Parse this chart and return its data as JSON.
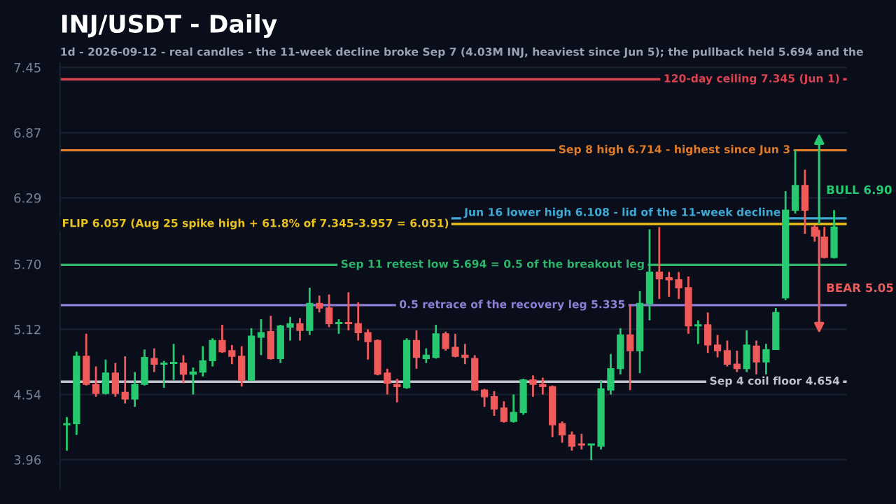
{
  "chart_data": {
    "type": "candlestick",
    "title": "INJ/USDT - Daily",
    "subtitle": "1d - 2026-09-12 - real candles - the 11-week decline broke Sep 7 (4.03M INJ, heaviest since Jun 5); the pullback held 5.694 and the",
    "categories": [
      null,
      null,
      null,
      null,
      null,
      null,
      null,
      null,
      null,
      null,
      null,
      null,
      null,
      null,
      null,
      null,
      null,
      null,
      null,
      null,
      null,
      null,
      null,
      null,
      null,
      null,
      null,
      null,
      null,
      null,
      null,
      null,
      null,
      null,
      null,
      null,
      null,
      null,
      null,
      null,
      null,
      null,
      null,
      null,
      null,
      null,
      null,
      null,
      null,
      null,
      null,
      null,
      null,
      null,
      null,
      null,
      null,
      null,
      null,
      null,
      null,
      null,
      null,
      null,
      null,
      null,
      null,
      null,
      null,
      null,
      null,
      null,
      null,
      null,
      null,
      null,
      null,
      null,
      null,
      null
    ],
    "ohlc": [
      [
        4.27,
        4.34,
        4.04,
        4.28
      ],
      [
        4.28,
        4.92,
        4.18,
        4.88
      ],
      [
        4.88,
        5.08,
        4.62,
        4.63
      ],
      [
        4.63,
        4.79,
        4.52,
        4.55
      ],
      [
        4.55,
        4.85,
        4.54,
        4.73
      ],
      [
        4.73,
        4.82,
        4.52,
        4.55
      ],
      [
        4.56,
        4.88,
        4.46,
        4.5
      ],
      [
        4.5,
        4.74,
        4.43,
        4.63
      ],
      [
        4.63,
        4.94,
        4.62,
        4.87
      ],
      [
        4.86,
        4.95,
        4.74,
        4.81
      ],
      [
        4.81,
        4.84,
        4.6,
        4.82
      ],
      [
        4.815,
        4.99,
        4.67,
        4.825
      ],
      [
        4.82,
        4.89,
        4.64,
        4.72
      ],
      [
        4.72,
        4.78,
        4.54,
        4.74
      ],
      [
        4.74,
        4.97,
        4.7,
        4.84
      ],
      [
        4.84,
        5.04,
        4.79,
        5.02
      ],
      [
        5.02,
        5.16,
        4.91,
        4.92
      ],
      [
        4.93,
        4.98,
        4.81,
        4.88
      ],
      [
        4.88,
        4.97,
        4.61,
        4.67
      ],
      [
        4.67,
        5.13,
        4.66,
        5.06
      ],
      [
        5.05,
        5.21,
        4.89,
        5.09
      ],
      [
        5.1,
        5.24,
        4.85,
        4.86
      ],
      [
        4.86,
        5.16,
        4.82,
        5.15
      ],
      [
        5.14,
        5.23,
        5.02,
        5.17
      ],
      [
        5.17,
        5.22,
        5.02,
        5.11
      ],
      [
        5.11,
        5.49,
        5.07,
        5.35
      ],
      [
        5.35,
        5.42,
        5.27,
        5.31
      ],
      [
        5.31,
        5.43,
        5.14,
        5.17
      ],
      [
        5.17,
        5.21,
        5.08,
        5.18
      ],
      [
        5.18,
        5.45,
        5.11,
        5.17
      ],
      [
        5.17,
        5.36,
        5.02,
        5.09
      ],
      [
        5.09,
        5.12,
        4.85,
        5.01
      ],
      [
        5.02,
        5.03,
        4.71,
        4.72
      ],
      [
        4.73,
        4.77,
        4.54,
        4.64
      ],
      [
        4.63,
        4.68,
        4.47,
        4.61
      ],
      [
        4.6,
        5.04,
        4.59,
        5.02
      ],
      [
        5.02,
        5.11,
        4.77,
        4.87
      ],
      [
        4.86,
        4.95,
        4.82,
        4.89
      ],
      [
        4.87,
        5.16,
        4.86,
        5.08
      ],
      [
        5.08,
        5.1,
        4.93,
        4.95
      ],
      [
        4.96,
        5.08,
        4.87,
        4.88
      ],
      [
        4.89,
        4.99,
        4.81,
        4.87
      ],
      [
        4.86,
        4.89,
        4.57,
        4.58
      ],
      [
        4.58,
        4.59,
        4.43,
        4.52
      ],
      [
        4.52,
        4.57,
        4.35,
        4.41
      ],
      [
        4.42,
        4.48,
        4.29,
        4.3
      ],
      [
        4.3,
        4.54,
        4.29,
        4.38
      ],
      [
        4.38,
        4.68,
        4.36,
        4.67
      ],
      [
        4.67,
        4.71,
        4.52,
        4.63
      ],
      [
        4.63,
        4.69,
        4.54,
        4.61
      ],
      [
        4.61,
        4.62,
        4.16,
        4.27
      ],
      [
        4.28,
        4.3,
        4.11,
        4.18
      ],
      [
        4.18,
        4.21,
        4.04,
        4.08
      ],
      [
        4.1,
        4.19,
        4.05,
        4.09
      ],
      [
        4.09,
        4.1,
        3.957,
        4.1
      ],
      [
        4.08,
        4.67,
        4.05,
        4.59
      ],
      [
        4.58,
        4.9,
        4.54,
        4.77
      ],
      [
        4.77,
        5.13,
        4.72,
        5.07
      ],
      [
        5.07,
        5.34,
        4.58,
        4.93
      ],
      [
        4.93,
        5.46,
        4.73,
        5.35
      ],
      [
        5.35,
        6.01,
        5.2,
        5.63
      ],
      [
        5.63,
        6.03,
        5.39,
        5.57
      ],
      [
        5.58,
        5.63,
        5.41,
        5.56
      ],
      [
        5.56,
        5.63,
        5.39,
        5.49
      ],
      [
        5.49,
        5.59,
        5.08,
        5.15
      ],
      [
        5.15,
        5.2,
        4.99,
        5.16
      ],
      [
        5.16,
        5.27,
        4.91,
        4.98
      ],
      [
        4.98,
        5.07,
        4.87,
        4.93
      ],
      [
        4.93,
        5.02,
        4.79,
        4.81
      ],
      [
        4.81,
        4.93,
        4.74,
        4.77
      ],
      [
        4.77,
        5.11,
        4.74,
        4.98
      ],
      [
        4.97,
        5.02,
        4.72,
        4.83
      ],
      [
        4.83,
        4.99,
        4.72,
        4.94
      ],
      [
        4.94,
        5.31,
        4.94,
        5.27
      ],
      [
        5.4,
        6.35,
        5.38,
        6.18
      ],
      [
        6.18,
        6.714,
        6.15,
        6.4
      ],
      [
        6.4,
        6.54,
        5.97,
        6.18
      ],
      [
        6.03,
        6.05,
        5.9,
        5.95
      ],
      [
        5.94,
        6.03,
        5.75,
        5.76
      ],
      [
        5.76,
        6.18,
        5.75,
        6.03
      ]
    ],
    "colors": [
      "#26c96f",
      "#26c96f",
      "#ef5a5a",
      "#ef5a5a",
      "#26c96f",
      "#ef5a5a",
      "#ef5a5a",
      "#26c96f",
      "#26c96f",
      "#ef5a5a",
      "#26c96f",
      "#26c96f",
      "#ef5a5a",
      "#26c96f",
      "#26c96f",
      "#26c96f",
      "#ef5a5a",
      "#ef5a5a",
      "#ef5a5a",
      "#26c96f",
      "#26c96f",
      "#ef5a5a",
      "#26c96f",
      "#26c96f",
      "#ef5a5a",
      "#26c96f",
      "#ef5a5a",
      "#ef5a5a",
      "#26c96f",
      "#ef5a5a",
      "#ef5a5a",
      "#ef5a5a",
      "#ef5a5a",
      "#ef5a5a",
      "#ef5a5a",
      "#26c96f",
      "#ef5a5a",
      "#26c96f",
      "#26c96f",
      "#ef5a5a",
      "#ef5a5a",
      "#ef5a5a",
      "#ef5a5a",
      "#ef5a5a",
      "#ef5a5a",
      "#ef5a5a",
      "#26c96f",
      "#26c96f",
      "#ef5a5a",
      "#ef5a5a",
      "#ef5a5a",
      "#ef5a5a",
      "#ef5a5a",
      "#ef5a5a",
      "#26c96f",
      "#26c96f",
      "#26c96f",
      "#26c96f",
      "#ef5a5a",
      "#26c96f",
      "#26c96f",
      "#ef5a5a",
      "#ef5a5a",
      "#ef5a5a",
      "#ef5a5a",
      "#26c96f",
      "#ef5a5a",
      "#ef5a5a",
      "#ef5a5a",
      "#ef5a5a",
      "#26c96f",
      "#ef5a5a",
      "#26c96f",
      "#26c96f",
      "#26c96f",
      "#26c96f",
      "#ef5a5a",
      "#ef5a5a",
      "#ef5a5a",
      "#26c96f"
    ],
    "ylim": [
      3.7,
      7.49
    ],
    "yticks": [
      {
        "value": 3.96,
        "label": "3.96"
      },
      {
        "value": 4.54,
        "label": "4.54"
      },
      {
        "value": 5.12,
        "label": "5.12"
      },
      {
        "value": 5.7,
        "label": "5.70"
      },
      {
        "value": 6.29,
        "label": "6.29"
      },
      {
        "value": 6.87,
        "label": "6.87"
      },
      {
        "value": 7.45,
        "label": "7.45"
      }
    ],
    "tick_labels": "y",
    "grid": "y",
    "ref_lines": [
      {
        "axis": "y",
        "value": 7.345,
        "label": "120-day ceiling 7.345 (Jun 1)",
        "color": "#d9434f"
      },
      {
        "axis": "y",
        "value": 6.714,
        "label": "Sep 8 high 6.714 - highest since Jun 3",
        "color": "#e07b2a"
      },
      {
        "axis": "y",
        "value": 6.108,
        "label": "Jun 16 lower high 6.108 - lid of the 11-week decline",
        "color": "#3fa9d6"
      },
      {
        "axis": "y",
        "value": 6.057,
        "label": "FLIP 6.057 (Aug 25 spike high + 61.8% of 7.345-3.957 = 6.051)",
        "color": "#e8c020"
      },
      {
        "axis": "y",
        "value": 5.694,
        "label": "Sep 11 retest low 5.694 = 0.5 of the breakout leg",
        "color": "#2fb36b"
      },
      {
        "axis": "y",
        "value": 5.335,
        "label": "0.5 retrace of the recovery leg 5.335",
        "color": "#8e7fd6"
      },
      {
        "axis": "y",
        "value": 4.654,
        "label": "Sep 4 coil floor 4.654",
        "color": "#c0c4cc"
      }
    ],
    "annotations": [
      "BULL 6.90",
      "BEAR 5.05"
    ]
  }
}
